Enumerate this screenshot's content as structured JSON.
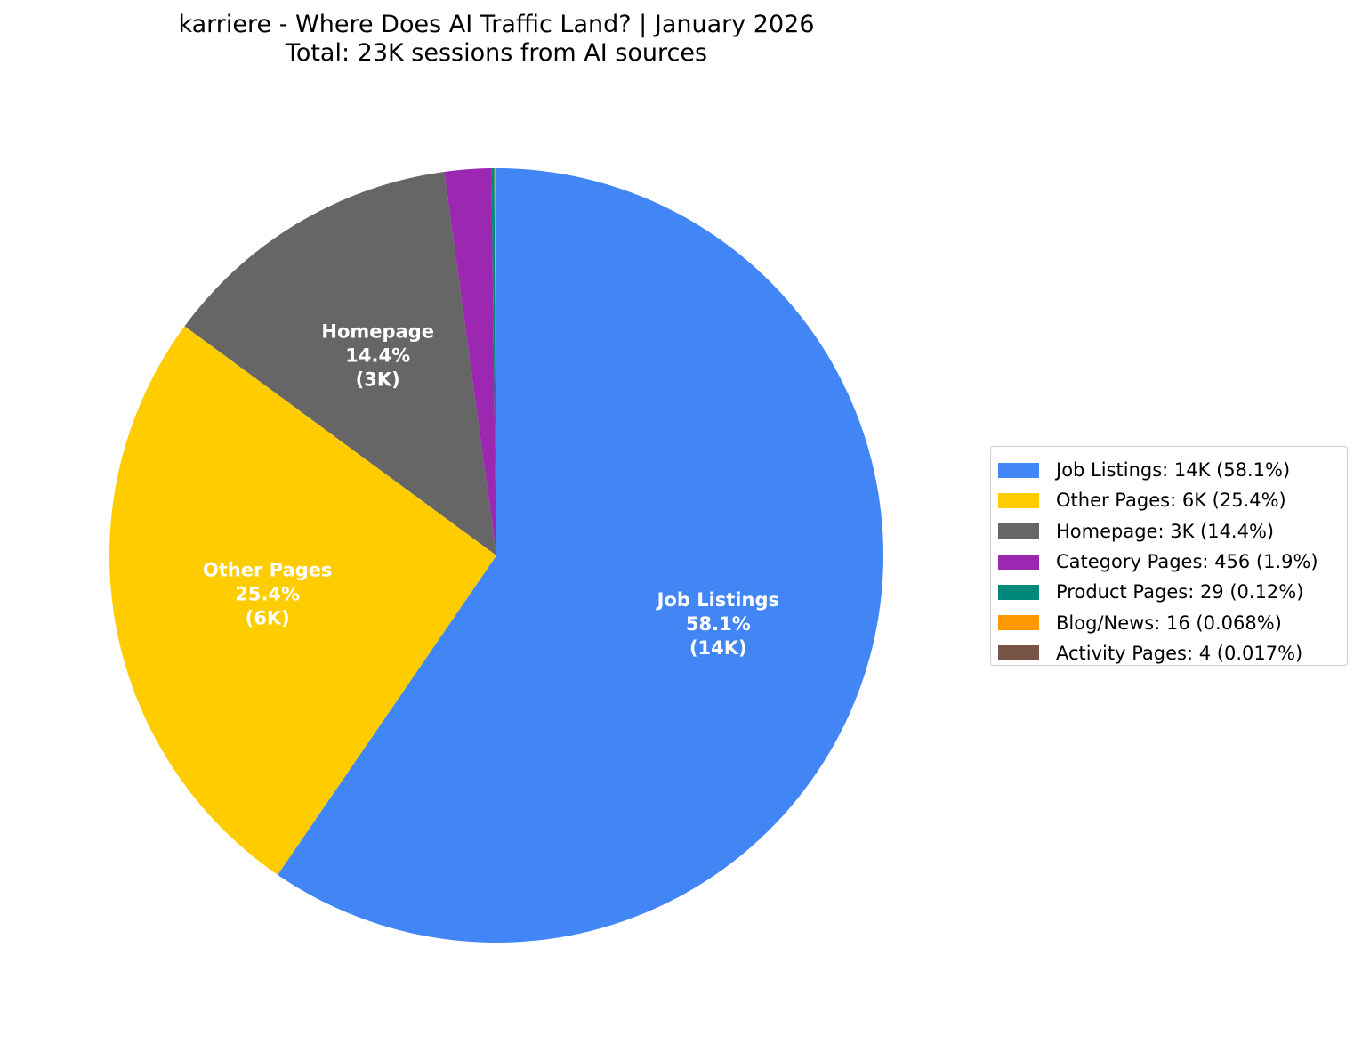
{
  "chart_data": {
    "type": "pie",
    "title": "karriere - Where Does AI Traffic Land? | January 2026",
    "subtitle": "Total: 23K sessions from AI sources",
    "legend_position": "right",
    "slices": [
      {
        "name": "Job Listings",
        "value": 14000,
        "percent": 58.1,
        "color": "#4285F4",
        "pie_label": [
          "Job Listings",
          "58.1%",
          "(14K)"
        ],
        "legend": "Job Listings: 14K (58.1%)"
      },
      {
        "name": "Other Pages",
        "value": 6000,
        "percent": 25.4,
        "color": "#FFCC00",
        "pie_label": [
          "Other Pages",
          "25.4%",
          "(6K)"
        ],
        "legend": "Other Pages: 6K (25.4%)"
      },
      {
        "name": "Homepage",
        "value": 3000,
        "percent": 14.4,
        "color": "#666666",
        "pie_label": [
          "Homepage",
          "14.4%",
          "(3K)"
        ],
        "legend": "Homepage: 3K (14.4%)"
      },
      {
        "name": "Category Pages",
        "value": 456,
        "percent": 1.9,
        "color": "#9C27B0",
        "pie_label": null,
        "legend": "Category Pages: 456 (1.9%)"
      },
      {
        "name": "Product Pages",
        "value": 29,
        "percent": 0.12,
        "color": "#00897B",
        "pie_label": null,
        "legend": "Product Pages: 29 (0.12%)"
      },
      {
        "name": "Blog/News",
        "value": 16,
        "percent": 0.068,
        "color": "#FF9800",
        "pie_label": null,
        "legend": "Blog/News: 16 (0.068%)"
      },
      {
        "name": "Activity Pages",
        "value": 4,
        "percent": 0.017,
        "color": "#795548",
        "pie_label": null,
        "legend": "Activity Pages: 4 (0.017%)"
      }
    ]
  }
}
